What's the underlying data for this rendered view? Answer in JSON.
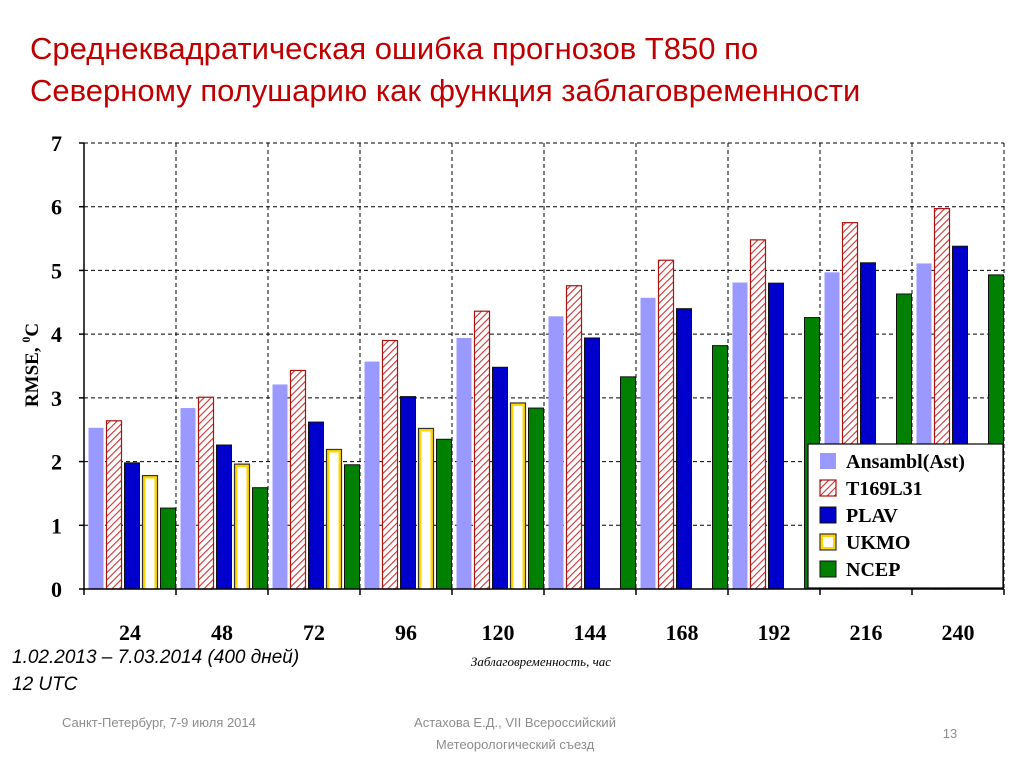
{
  "slide": {
    "title_line1": "Среднеквадратическая ошибка прогнозов Т850 по",
    "title_line2": "Северному полушарию как функция заблаговременности",
    "period_line1": "1.02.2013 – 7.03.2014 (400 дней)",
    "period_line2": "12 UTC",
    "footer_left": "Санкт-Петербург, 7-9 июля 2014",
    "footer_center": "Астахова Е.Д., VII Всероссийский Метеорологический съезд",
    "slide_number": "13"
  },
  "chart_data": {
    "type": "bar",
    "xlabel": "Заблаговременность, час",
    "ylabel": "RMSE, ",
    "ylabel_superscript": "0",
    "ylabel_unit": "C",
    "ylim": [
      0,
      7
    ],
    "yticks": [
      0,
      1,
      2,
      3,
      4,
      5,
      6,
      7
    ],
    "grid": true,
    "legend_position": "bottom-right",
    "categories": [
      "24",
      "48",
      "72",
      "96",
      "120",
      "144",
      "168",
      "192",
      "216",
      "240"
    ],
    "series": [
      {
        "name": "Ansambl(Ast)",
        "color": "#9999ff",
        "pattern": "solid",
        "values": [
          2.53,
          2.84,
          3.21,
          3.57,
          3.94,
          4.28,
          4.57,
          4.81,
          4.97,
          5.11
        ]
      },
      {
        "name": "T169L31",
        "color": "#cc3333",
        "pattern": "hatched",
        "values": [
          2.64,
          3.01,
          3.43,
          3.9,
          4.36,
          4.76,
          5.16,
          5.48,
          5.75,
          5.97
        ]
      },
      {
        "name": "PLAV",
        "color": "#0000cc",
        "pattern": "solid",
        "values": [
          1.98,
          2.26,
          2.62,
          3.02,
          3.48,
          3.94,
          4.4,
          4.8,
          5.12,
          5.38
        ]
      },
      {
        "name": "UKMO",
        "color": "#ffd700",
        "pattern": "outlined",
        "values": [
          1.78,
          1.96,
          2.19,
          2.52,
          2.92,
          null,
          null,
          null,
          null,
          null
        ]
      },
      {
        "name": "NCEP",
        "color": "#008000",
        "pattern": "solid",
        "values": [
          1.27,
          1.59,
          1.95,
          2.35,
          2.84,
          3.33,
          3.82,
          4.26,
          4.63,
          4.93
        ]
      }
    ]
  }
}
